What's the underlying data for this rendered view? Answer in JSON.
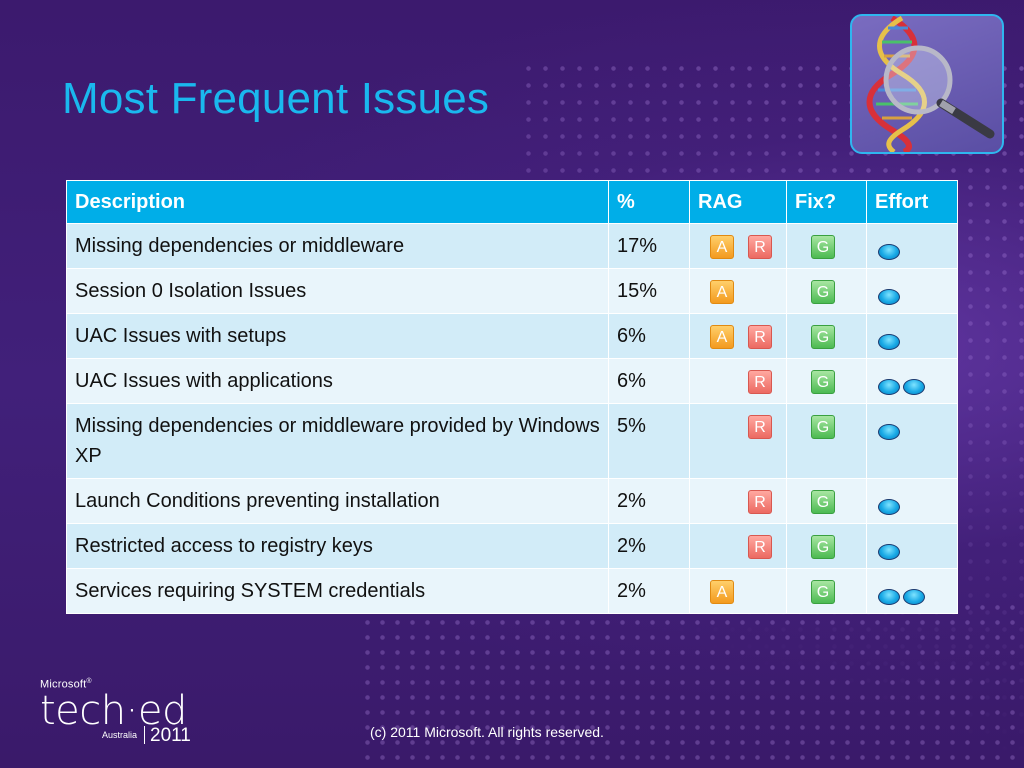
{
  "title": "Most Frequent Issues",
  "table": {
    "headers": [
      "Description",
      "%",
      "RAG",
      "Fix?",
      "Effort"
    ],
    "rows": [
      {
        "description": "Missing dependencies or middleware",
        "percent": "17%",
        "rag": [
          "A",
          "R"
        ],
        "fix": "G",
        "effort": 1
      },
      {
        "description": "Session 0 Isolation Issues",
        "percent": "15%",
        "rag": [
          "A"
        ],
        "fix": "G",
        "effort": 1
      },
      {
        "description": "UAC Issues with setups",
        "percent": "6%",
        "rag": [
          "A",
          "R"
        ],
        "fix": "G",
        "effort": 1
      },
      {
        "description": "UAC Issues with applications",
        "percent": "6%",
        "rag": [
          "R"
        ],
        "fix": "G",
        "effort": 2
      },
      {
        "description": "Missing dependencies or middleware provided by Windows XP",
        "percent": "5%",
        "rag": [
          "R"
        ],
        "fix": "G",
        "effort": 1
      },
      {
        "description": "Launch Conditions preventing installation",
        "percent": "2%",
        "rag": [
          "R"
        ],
        "fix": "G",
        "effort": 1
      },
      {
        "description": "Restricted access to registry keys",
        "percent": "2%",
        "rag": [
          "R"
        ],
        "fix": "G",
        "effort": 1
      },
      {
        "description": "Services requiring SYSTEM credentials",
        "percent": "2%",
        "rag": [
          "A"
        ],
        "fix": "G",
        "effort": 2
      }
    ]
  },
  "footer": {
    "brand_small": "Microsoft",
    "brand_trademark": "®",
    "brand_main": "tech·ed",
    "region": "Australia",
    "year": "2011",
    "copyright": "(c) 2011 Microsoft. All rights reserved."
  },
  "colors": {
    "background": "#3c1a6e",
    "title": "#1ab8ee",
    "header": "#00aee8",
    "row_odd": "#d2ecf8",
    "row_even": "#e9f5fb",
    "amber": "#f39a1e",
    "red": "#ec6a62",
    "green": "#4cba52",
    "effort": "#18a9e6"
  },
  "icons": {
    "logo": "dna-magnifier-icon",
    "effort": "effort-dot-icon"
  }
}
